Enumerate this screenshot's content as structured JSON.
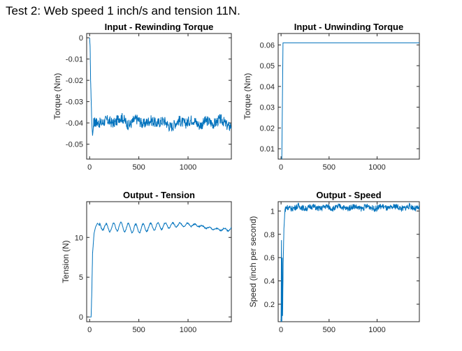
{
  "page": {
    "title": "Test 2: Web speed 1 inch/s and tension 11N."
  },
  "colors": {
    "line": "#0072BD",
    "axis": "#262626",
    "background": "#ffffff"
  },
  "chart_data": [
    {
      "id": "rewinding-torque",
      "type": "line",
      "title": "Input - Rewinding Torque",
      "xlabel": "",
      "ylabel": "Torque (Nm)",
      "xlim": [
        -30,
        1440
      ],
      "ylim": [
        -0.057,
        0.002
      ],
      "xticks": [
        0,
        500,
        1000
      ],
      "xtick_labels": [
        "0",
        "500",
        "1000"
      ],
      "yticks": [
        0,
        -0.01,
        -0.02,
        -0.03,
        -0.04,
        -0.05
      ],
      "ytick_labels": [
        "0",
        "-0.01",
        "-0.02",
        "-0.03",
        "-0.04",
        "-0.05"
      ],
      "grid": false,
      "series": [
        {
          "style": "noisy",
          "x": [
            0,
            5,
            10,
            15,
            22,
            30,
            40,
            60,
            100,
            200,
            300,
            400,
            500,
            600,
            700,
            800,
            900,
            1000,
            1100,
            1200,
            1300,
            1440
          ],
          "y": [
            0.0,
            -0.004,
            -0.02,
            -0.028,
            -0.04,
            -0.046,
            -0.041,
            -0.04,
            -0.039,
            -0.04,
            -0.038,
            -0.04,
            -0.039,
            -0.04,
            -0.039,
            -0.041,
            -0.04,
            -0.039,
            -0.04,
            -0.04,
            -0.039,
            -0.041
          ],
          "noise_amplitude": 0.0025
        }
      ]
    },
    {
      "id": "unwinding-torque",
      "type": "line",
      "title": "Input - Unwinding Torque",
      "xlabel": "",
      "ylabel": "Torque (Nm)",
      "xlim": [
        -30,
        1440
      ],
      "ylim": [
        0.005,
        0.0655
      ],
      "xticks": [
        0,
        500,
        1000
      ],
      "xtick_labels": [
        "0",
        "500",
        "1000"
      ],
      "yticks": [
        0.01,
        0.02,
        0.03,
        0.04,
        0.05,
        0.06
      ],
      "ytick_labels": [
        "0.01",
        "0.02",
        "0.03",
        "0.04",
        "0.05",
        "0.06"
      ],
      "grid": false,
      "series": [
        {
          "style": "plain",
          "x": [
            0,
            8,
            20,
            1440
          ],
          "y": [
            0.005,
            0.005,
            0.061,
            0.061
          ]
        }
      ]
    },
    {
      "id": "output-tension",
      "type": "line",
      "title": "Output - Tension",
      "xlabel": "",
      "ylabel": "Tension (N)",
      "xlim": [
        -30,
        1440
      ],
      "ylim": [
        -0.6,
        14.5
      ],
      "xticks": [
        0,
        500,
        1000
      ],
      "xtick_labels": [
        "0",
        "500",
        "1000"
      ],
      "yticks": [
        0,
        5,
        10
      ],
      "ytick_labels": [
        "0",
        "5",
        "10"
      ],
      "grid": false,
      "series": [
        {
          "style": "wavy",
          "x": [
            0,
            15,
            22,
            30,
            45,
            60,
            80,
            100,
            150,
            200,
            300,
            400,
            500,
            600,
            700,
            800,
            900,
            1000,
            1100,
            1200,
            1300,
            1440
          ],
          "y": [
            0,
            0,
            3,
            8,
            10.5,
            11.3,
            11.8,
            11.5,
            11.3,
            11.2,
            11.4,
            11.2,
            11.1,
            11.3,
            11.4,
            11.5,
            11.6,
            11.6,
            11.5,
            11.2,
            11.0,
            11.0
          ],
          "wave_amplitude": 0.55,
          "wave_period": 75
        }
      ]
    },
    {
      "id": "output-speed",
      "type": "line",
      "title": "Output - Speed",
      "xlabel": "",
      "ylabel": "Speed (inch per second)",
      "xlim": [
        -30,
        1440
      ],
      "ylim": [
        0.05,
        1.08
      ],
      "xticks": [
        0,
        500,
        1000
      ],
      "xtick_labels": [
        "0",
        "500",
        "1000"
      ],
      "yticks": [
        0.2,
        0.4,
        0.6,
        0.8,
        1
      ],
      "ytick_labels": [
        "0.2",
        "0.4",
        "0.6",
        "0.8",
        "1"
      ],
      "grid": false,
      "series": [
        {
          "style": "noisy",
          "x": [
            0,
            4,
            8,
            12,
            16,
            22,
            30,
            40,
            60,
            100,
            300,
            600,
            900,
            1200,
            1440
          ],
          "y": [
            0.05,
            0.75,
            0.05,
            0.6,
            0.1,
            0.55,
            0.85,
            1.0,
            1.03,
            1.03,
            1.03,
            1.03,
            1.03,
            1.03,
            1.03
          ],
          "noise_amplitude": 0.025
        }
      ]
    }
  ]
}
